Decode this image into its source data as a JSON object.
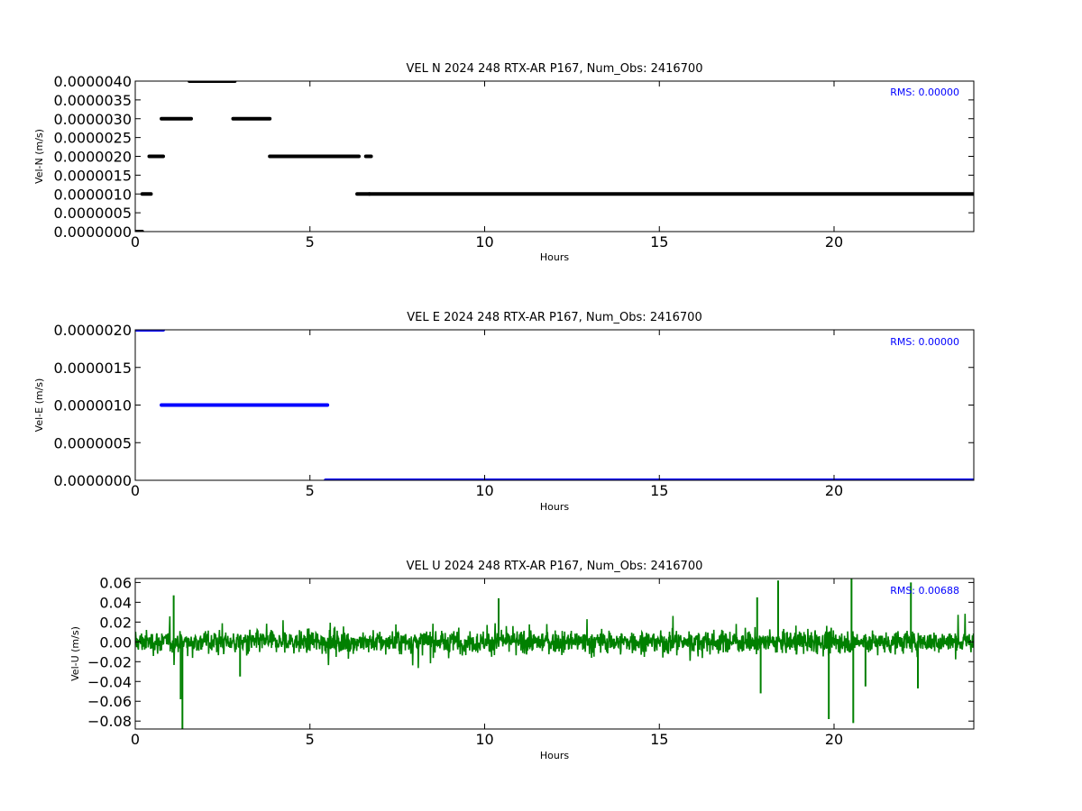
{
  "chart_data": [
    {
      "type": "scatter",
      "title": "VEL N 2024 248 RTX-AR  P167, Num_Obs: 2416700",
      "xlabel": "Hours",
      "ylabel": "Vel-N (m/s)",
      "xlim": [
        0,
        24
      ],
      "ylim": [
        0,
        4e-06
      ],
      "grid": false,
      "color": "#000000",
      "rms_text": "RMS:  0.00000",
      "rms_color": "#0000ff",
      "x_ticks": [
        0,
        5,
        10,
        15,
        20
      ],
      "x_tick_labels": [
        "0",
        "5",
        "10",
        "15",
        "20"
      ],
      "y_ticks": [
        0,
        5e-07,
        1e-06,
        1.5e-06,
        2e-06,
        2.5e-06,
        3e-06,
        3.5e-06,
        4e-06
      ],
      "y_tick_labels": [
        "0.0000000",
        "0.0000005",
        "0.0000010",
        "0.0000015",
        "0.0000020",
        "0.0000025",
        "0.0000030",
        "0.0000035",
        "0.0000040"
      ],
      "segments": [
        {
          "x0": 0.0,
          "x1": 0.2,
          "y": 0.0
        },
        {
          "x0": 0.2,
          "x1": 0.45,
          "y": 1e-06
        },
        {
          "x0": 0.4,
          "x1": 0.8,
          "y": 2e-06
        },
        {
          "x0": 0.75,
          "x1": 1.6,
          "y": 3e-06
        },
        {
          "x0": 1.55,
          "x1": 2.85,
          "y": 4e-06
        },
        {
          "x0": 2.8,
          "x1": 3.85,
          "y": 3e-06
        },
        {
          "x0": 3.85,
          "x1": 6.4,
          "y": 2e-06
        },
        {
          "x0": 6.35,
          "x1": 6.7,
          "y": 1e-06
        },
        {
          "x0": 6.6,
          "x1": 6.75,
          "y": 2e-06
        },
        {
          "x0": 6.7,
          "x1": 24.0,
          "y": 1e-06
        }
      ]
    },
    {
      "type": "scatter",
      "title": "VEL E 2024 248 RTX-AR  P167, Num_Obs: 2416700",
      "xlabel": "Hours",
      "ylabel": "Vel-E (m/s)",
      "xlim": [
        0,
        24
      ],
      "ylim": [
        0,
        2e-06
      ],
      "grid": false,
      "color": "#0000ff",
      "rms_text": "RMS:  0.00000",
      "rms_color": "#0000ff",
      "x_ticks": [
        0,
        5,
        10,
        15,
        20
      ],
      "x_tick_labels": [
        "0",
        "5",
        "10",
        "15",
        "20"
      ],
      "y_ticks": [
        0,
        5e-07,
        1e-06,
        1.5e-06,
        2e-06
      ],
      "y_tick_labels": [
        "0.0000000",
        "0.0000005",
        "0.0000010",
        "0.0000015",
        "0.0000020"
      ],
      "segments": [
        {
          "x0": 0.0,
          "x1": 0.8,
          "y": 2e-06
        },
        {
          "x0": 0.75,
          "x1": 5.5,
          "y": 1e-06
        },
        {
          "x0": 5.45,
          "x1": 24.0,
          "y": 0.0
        }
      ]
    },
    {
      "type": "line",
      "title": "VEL U 2024 248 RTX-AR  P167, Num_Obs: 2416700",
      "xlabel": "Hours",
      "ylabel": "Vel-U (m/s)",
      "xlim": [
        0,
        24
      ],
      "ylim": [
        -0.088,
        0.064
      ],
      "grid": false,
      "color": "#008000",
      "rms_text": "RMS:  0.00688",
      "rms_color": "#0000ff",
      "rms": 0.00688,
      "x_ticks": [
        0,
        5,
        10,
        15,
        20
      ],
      "x_tick_labels": [
        "0",
        "5",
        "10",
        "15",
        "20"
      ],
      "y_ticks": [
        -0.08,
        -0.06,
        -0.04,
        -0.02,
        0.0,
        0.02,
        0.04,
        0.06
      ],
      "y_tick_labels": [
        "−0.08",
        "−0.06",
        "−0.04",
        "−0.02",
        "0.00",
        "0.02",
        "0.04",
        "0.06"
      ],
      "spikes": [
        {
          "x": 1.1,
          "y": 0.047
        },
        {
          "x": 1.3,
          "y": -0.058
        },
        {
          "x": 1.35,
          "y": -0.088
        },
        {
          "x": 3.0,
          "y": -0.035
        },
        {
          "x": 10.4,
          "y": 0.044
        },
        {
          "x": 17.8,
          "y": 0.045
        },
        {
          "x": 17.9,
          "y": -0.052
        },
        {
          "x": 18.4,
          "y": 0.062
        },
        {
          "x": 19.85,
          "y": -0.078
        },
        {
          "x": 20.5,
          "y": 0.064
        },
        {
          "x": 20.55,
          "y": -0.082
        },
        {
          "x": 20.9,
          "y": -0.045
        },
        {
          "x": 22.2,
          "y": 0.06
        },
        {
          "x": 22.4,
          "y": -0.047
        }
      ]
    }
  ]
}
